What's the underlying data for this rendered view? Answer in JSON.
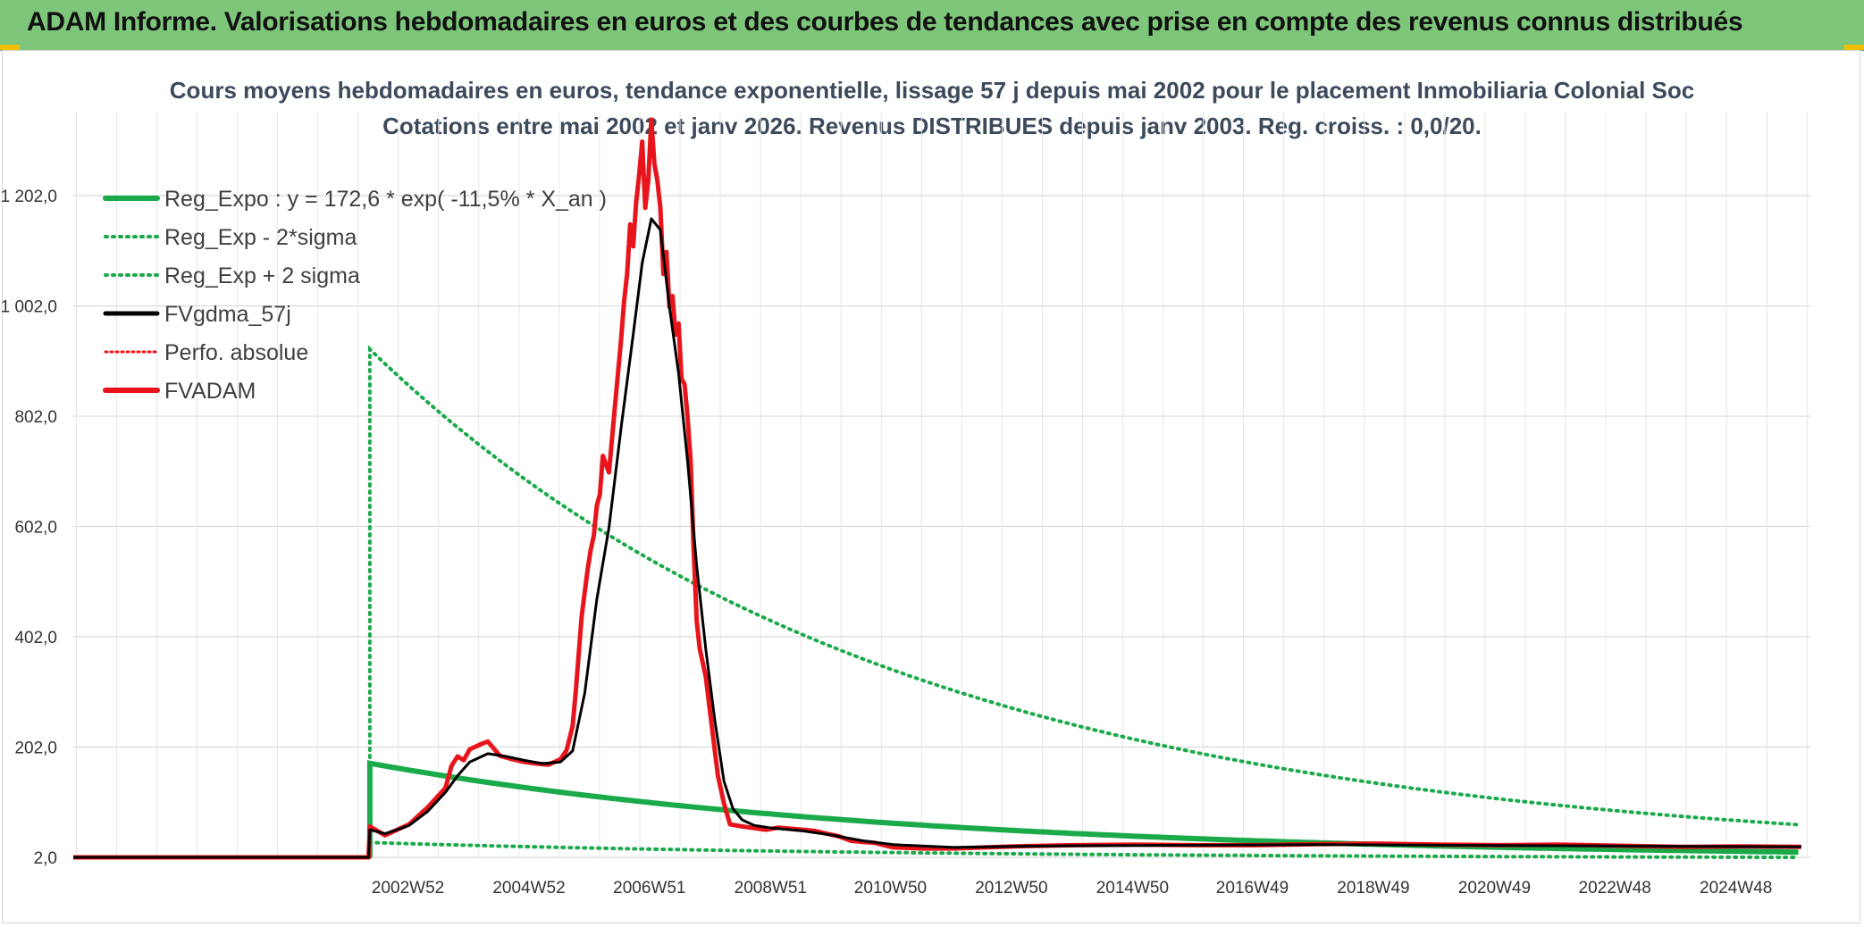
{
  "banner": {
    "title": "ADAM Informe. Valorisations hebdomadaires en euros et des courbes de tendances avec prise en compte des revenus connus distribués"
  },
  "colors": {
    "banner": "#7dc67a",
    "reg_expo": "#1aaa4a",
    "fvgdma": "#000000",
    "fvadam": "#e8141b",
    "perfo": "#e8141b",
    "grid": "#d9d9d9"
  },
  "chart_data": {
    "type": "line",
    "title": "Cours moyens hebdomadaires en euros, tendance exponentielle, lissage 57 j depuis mai 2002 pour le placement Inmobiliaria Colonial Soc",
    "subtitle": "Cotations entre mai 2002 et janv 2026. Revenus DISTRIBUES depuis janv 2003. Reg. croiss. : 0,0/20.",
    "xlabel": "",
    "ylabel": "",
    "ylim": [
      2,
      1322
    ],
    "x_range": [
      1997.45,
      2026.15
    ],
    "y_ticks": [
      2,
      202,
      402,
      602,
      802,
      1002,
      1202
    ],
    "y_tick_labels": [
      "2,0",
      "202,0",
      "402,0",
      "602,0",
      "802,0",
      "1 002,0",
      "1 202,0"
    ],
    "x_ticks": [
      2002.98,
      2004.98,
      2006.97,
      2008.97,
      2010.95,
      2012.95,
      2014.95,
      2016.93,
      2018.93,
      2020.93,
      2022.92,
      2024.92
    ],
    "x_tick_labels": [
      "2002W52",
      "2004W52",
      "2006W51",
      "2008W51",
      "2010W50",
      "2012W50",
      "2014W50",
      "2016W49",
      "2018W49",
      "2020W49",
      "2022W48",
      "2024W48"
    ],
    "grid": true,
    "legend_position": "top-left",
    "legend": [
      {
        "key": "reg_expo",
        "label": "Reg_Expo : y = 172,6 * exp( -11,5% *  X_an )"
      },
      {
        "key": "reg_minus",
        "label": "Reg_Exp - 2*sigma"
      },
      {
        "key": "reg_plus",
        "label": "Reg_Exp + 2 sigma"
      },
      {
        "key": "fvgdma",
        "label": "FVgdma_57j"
      },
      {
        "key": "perfo",
        "label": "Perfo. absolue"
      },
      {
        "key": "fvadam",
        "label": "FVADAM"
      }
    ],
    "regression": {
      "start": 2002.35,
      "end": 2026.0,
      "a": 172.6,
      "rate": -0.115,
      "minus_factor": 0.167,
      "plus_factor": 5.35
    },
    "series": [
      {
        "name": "FVADAM",
        "x": [
          1997.45,
          2002.33,
          2002.35,
          2002.6,
          2002.8,
          2003.0,
          2003.3,
          2003.6,
          2003.7,
          2003.8,
          2003.9,
          2004.0,
          2004.2,
          2004.3,
          2004.5,
          2004.7,
          2004.9,
          2005.1,
          2005.3,
          2005.5,
          2005.6,
          2005.7,
          2005.75,
          2005.85,
          2005.95,
          2006.0,
          2006.05,
          2006.1,
          2006.15,
          2006.2,
          2006.3,
          2006.4,
          2006.45,
          2006.5,
          2006.55,
          2006.6,
          2006.65,
          2006.7,
          2006.75,
          2006.8,
          2006.85,
          2006.9,
          2006.95,
          2007.0,
          2007.05,
          2007.1,
          2007.15,
          2007.2,
          2007.25,
          2007.3,
          2007.35,
          2007.4,
          2007.45,
          2007.5,
          2007.55,
          2007.6,
          2007.65,
          2007.7,
          2007.75,
          2007.8,
          2007.9,
          2008.0,
          2008.1,
          2008.2,
          2008.3,
          2008.5,
          2008.7,
          2008.9,
          2009.1,
          2009.3,
          2009.5,
          2009.7,
          2009.9,
          2010.1,
          2010.3,
          2010.5,
          2010.7,
          2011.0,
          2011.5,
          2012.0,
          2012.5,
          2013.0,
          2014.0,
          2015.0,
          2016.0,
          2017.0,
          2018.0,
          2019.0,
          2020.0,
          2021.0,
          2022.0,
          2023.0,
          2024.0,
          2025.0,
          2026.0
        ],
        "y": [
          2,
          2,
          58,
          42,
          52,
          62,
          92,
          128,
          168,
          185,
          178,
          198,
          208,
          212,
          186,
          180,
          175,
          172,
          170,
          180,
          196,
          240,
          300,
          440,
          525,
          560,
          585,
          640,
          660,
          730,
          700,
          820,
          880,
          940,
          1010,
          1060,
          1150,
          1110,
          1190,
          1240,
          1300,
          1180,
          1230,
          1340,
          1260,
          1230,
          1180,
          1060,
          1100,
          1000,
          1020,
          950,
          970,
          870,
          860,
          800,
          720,
          560,
          430,
          380,
          330,
          240,
          150,
          100,
          62,
          58,
          55,
          52,
          56,
          54,
          52,
          50,
          45,
          40,
          32,
          30,
          28,
          20,
          18,
          18,
          20,
          22,
          24,
          25,
          24,
          24,
          26,
          27,
          25,
          24,
          25,
          23,
          21,
          22,
          21
        ]
      },
      {
        "name": "FVgdma_57j",
        "x": [
          1997.45,
          2002.33,
          2002.35,
          2002.6,
          2002.8,
          2003.0,
          2003.3,
          2003.6,
          2003.8,
          2004.0,
          2004.3,
          2004.6,
          2004.9,
          2005.2,
          2005.5,
          2005.7,
          2005.9,
          2006.1,
          2006.3,
          2006.5,
          2006.7,
          2006.85,
          2007.0,
          2007.15,
          2007.3,
          2007.45,
          2007.6,
          2007.75,
          2007.9,
          2008.05,
          2008.2,
          2008.35,
          2008.5,
          2008.7,
          2009.0,
          2009.5,
          2010.0,
          2010.5,
          2011.0,
          2012.0,
          2013.0,
          2014.0,
          2016.0,
          2018.0,
          2020.0,
          2022.0,
          2024.0,
          2026.0
        ],
        "y": [
          2,
          2,
          52,
          45,
          52,
          60,
          85,
          120,
          150,
          175,
          190,
          185,
          178,
          172,
          175,
          195,
          300,
          470,
          600,
          780,
          950,
          1080,
          1160,
          1140,
          1000,
          880,
          720,
          530,
          380,
          250,
          140,
          90,
          70,
          60,
          55,
          50,
          42,
          32,
          25,
          20,
          22,
          23,
          24,
          25,
          24,
          23,
          22,
          21
        ]
      }
    ]
  }
}
